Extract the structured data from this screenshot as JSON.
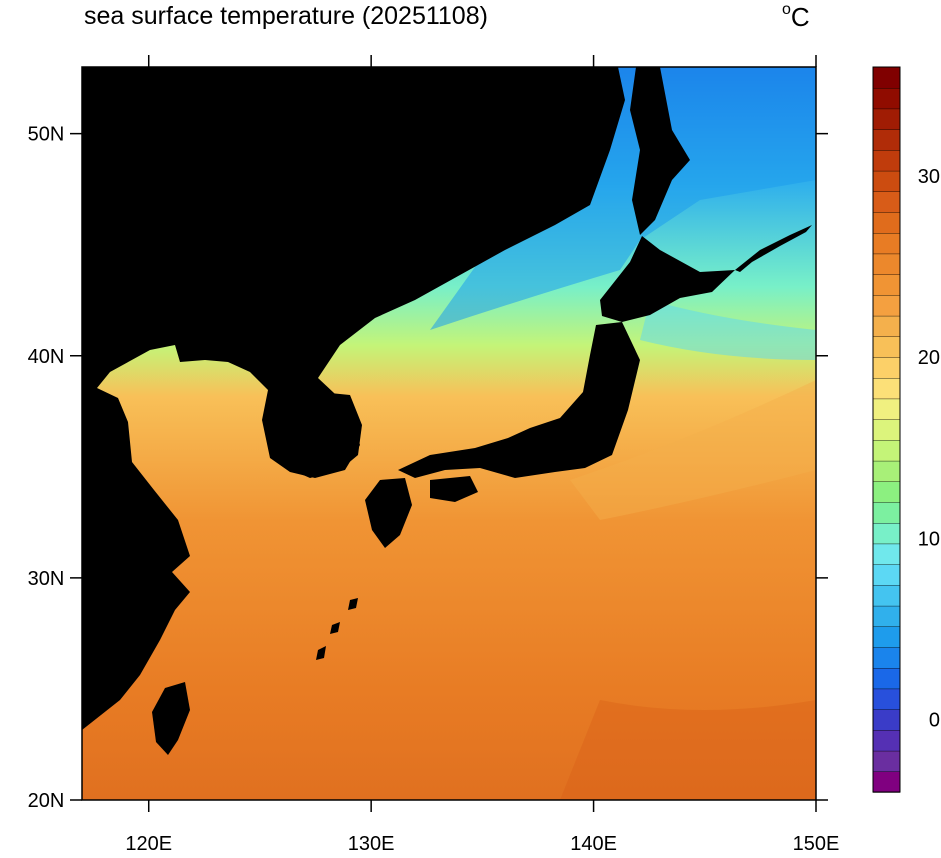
{
  "title": "sea surface temperature (20251108)",
  "unit_label": {
    "degree": "o",
    "letter": "C"
  },
  "map": {
    "lon_range": [
      117,
      150
    ],
    "lat_range": [
      20,
      53
    ],
    "x_ticks": [
      "120E",
      "130E",
      "140E",
      "150E"
    ],
    "y_ticks": [
      "20N",
      "30N",
      "40N",
      "50N"
    ],
    "land_color": "#000000",
    "sst_contours_c": [
      {
        "lat": 46,
        "value": 4
      },
      {
        "lat": 42,
        "value": 11
      },
      {
        "lat": 38,
        "value": 17
      },
      {
        "lat": 35,
        "value": 21
      },
      {
        "lat": 31,
        "value": 24
      },
      {
        "lat": 26,
        "value": 26
      },
      {
        "lat": 21,
        "value": 28
      }
    ]
  },
  "colorbar": {
    "min": -4,
    "max": 36,
    "labels": [
      "0",
      "10",
      "20",
      "30"
    ],
    "colors": [
      "#800080",
      "#6a2ea0",
      "#5530b4",
      "#3a3cc8",
      "#2850dc",
      "#1a68e8",
      "#1a84ec",
      "#1e9cec",
      "#30b0ec",
      "#44c4f0",
      "#5cd8f4",
      "#70e8ec",
      "#78f0c8",
      "#7cf0a0",
      "#8cf080",
      "#a8f078",
      "#c4f478",
      "#dcf47c",
      "#f0f080",
      "#fce078",
      "#fcd068",
      "#f8c058",
      "#f4b04c",
      "#f4a040",
      "#f09434",
      "#ec882c",
      "#e87c24",
      "#e06c1c",
      "#d85c18",
      "#cc4c10",
      "#c03c0c",
      "#b02c08",
      "#a01c04",
      "#900c00",
      "#800000"
    ]
  }
}
